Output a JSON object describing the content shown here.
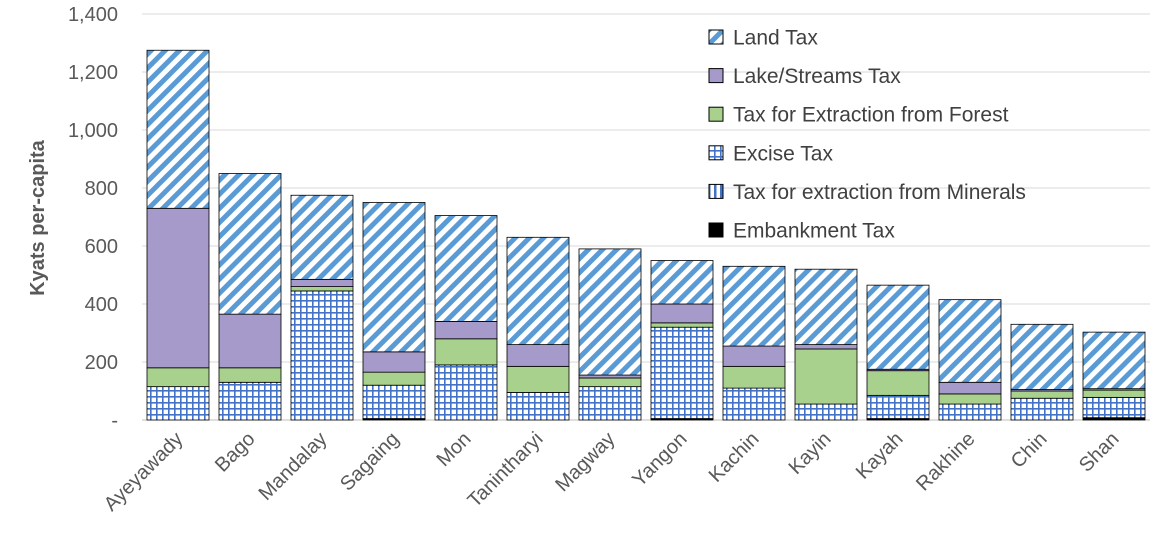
{
  "chart_data": {
    "type": "bar",
    "stacked": true,
    "title": "",
    "xlabel": "",
    "ylabel": "Kyats per-capita",
    "ylim": [
      0,
      1400
    ],
    "yticks": [
      0,
      200,
      400,
      600,
      800,
      1000,
      1200,
      1400
    ],
    "ytick_labels": [
      "-",
      "200",
      "400",
      "600",
      "800",
      "1,000",
      "1,200",
      "1,400"
    ],
    "grid": true,
    "legend_position": "top-right",
    "categories": [
      "Ayeyawady",
      "Bago",
      "Mandalay",
      "Sagaing",
      "Mon",
      "Tanintharyi",
      "Magway",
      "Yangon",
      "Kachin",
      "Kayin",
      "Kayah",
      "Rakhine",
      "Chin",
      "Shan"
    ],
    "series": [
      {
        "name": "Embankment Tax",
        "pattern": "solid",
        "color": "#000000",
        "values": [
          0,
          0,
          0,
          5,
          0,
          0,
          0,
          5,
          0,
          0,
          5,
          0,
          0,
          8
        ]
      },
      {
        "name": "Tax for extraction from Minerals",
        "pattern": "vertical-stripes",
        "color": "#4472c4",
        "values": [
          0,
          0,
          0,
          0,
          0,
          0,
          0,
          0,
          0,
          0,
          0,
          0,
          0,
          0
        ]
      },
      {
        "name": "Excise Tax",
        "pattern": "grid",
        "color": "#4472c4",
        "values": [
          115,
          130,
          445,
          115,
          190,
          95,
          115,
          315,
          110,
          55,
          80,
          55,
          75,
          70
        ]
      },
      {
        "name": "Tax for Extraction from Forest",
        "pattern": "solid",
        "color": "#a9d18e",
        "values": [
          65,
          50,
          15,
          45,
          90,
          90,
          30,
          15,
          75,
          190,
          85,
          35,
          25,
          25
        ]
      },
      {
        "name": "Lake/Streams Tax",
        "pattern": "solid",
        "color": "#a59ac9",
        "values": [
          550,
          185,
          25,
          70,
          60,
          75,
          10,
          65,
          70,
          15,
          5,
          40,
          5,
          5
        ]
      },
      {
        "name": "Land Tax",
        "pattern": "diagonal-stripes",
        "color": "#5b9bd5",
        "values": [
          545,
          485,
          290,
          515,
          365,
          370,
          435,
          150,
          275,
          260,
          290,
          285,
          225,
          195
        ]
      }
    ]
  }
}
